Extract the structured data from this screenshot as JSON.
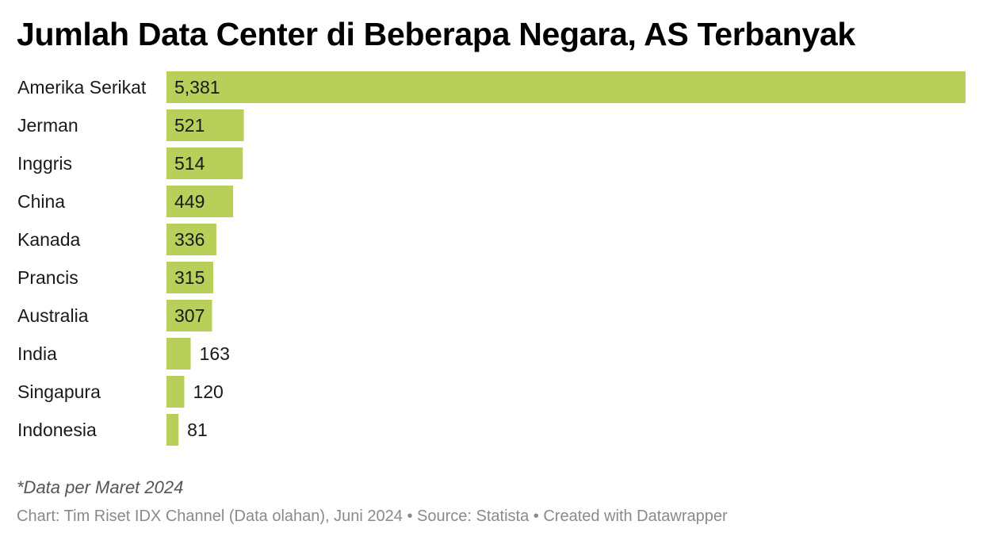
{
  "chart_data": {
    "type": "bar",
    "orientation": "horizontal",
    "title": "Jumlah Data Center di Beberapa Negara, AS Terbanyak",
    "categories": [
      "Amerika Serikat",
      "Jerman",
      "Inggris",
      "China",
      "Kanada",
      "Prancis",
      "Australia",
      "India",
      "Singapura",
      "Indonesia"
    ],
    "values": [
      5381,
      521,
      514,
      449,
      336,
      315,
      307,
      163,
      120,
      81
    ],
    "value_labels": [
      "5,381",
      "521",
      "514",
      "449",
      "336",
      "315",
      "307",
      "163",
      "120",
      "81"
    ],
    "xlim": [
      0,
      5381
    ],
    "grid": false,
    "bar_color": "#b8cf5a"
  },
  "note": "*Data per Maret 2024",
  "footer": {
    "chart_credit": "Chart: Tim Riset IDX Channel (Data olahan), Juni 2024",
    "separator": " • ",
    "source": "Source: Statista",
    "created": "Created with Datawrapper"
  }
}
